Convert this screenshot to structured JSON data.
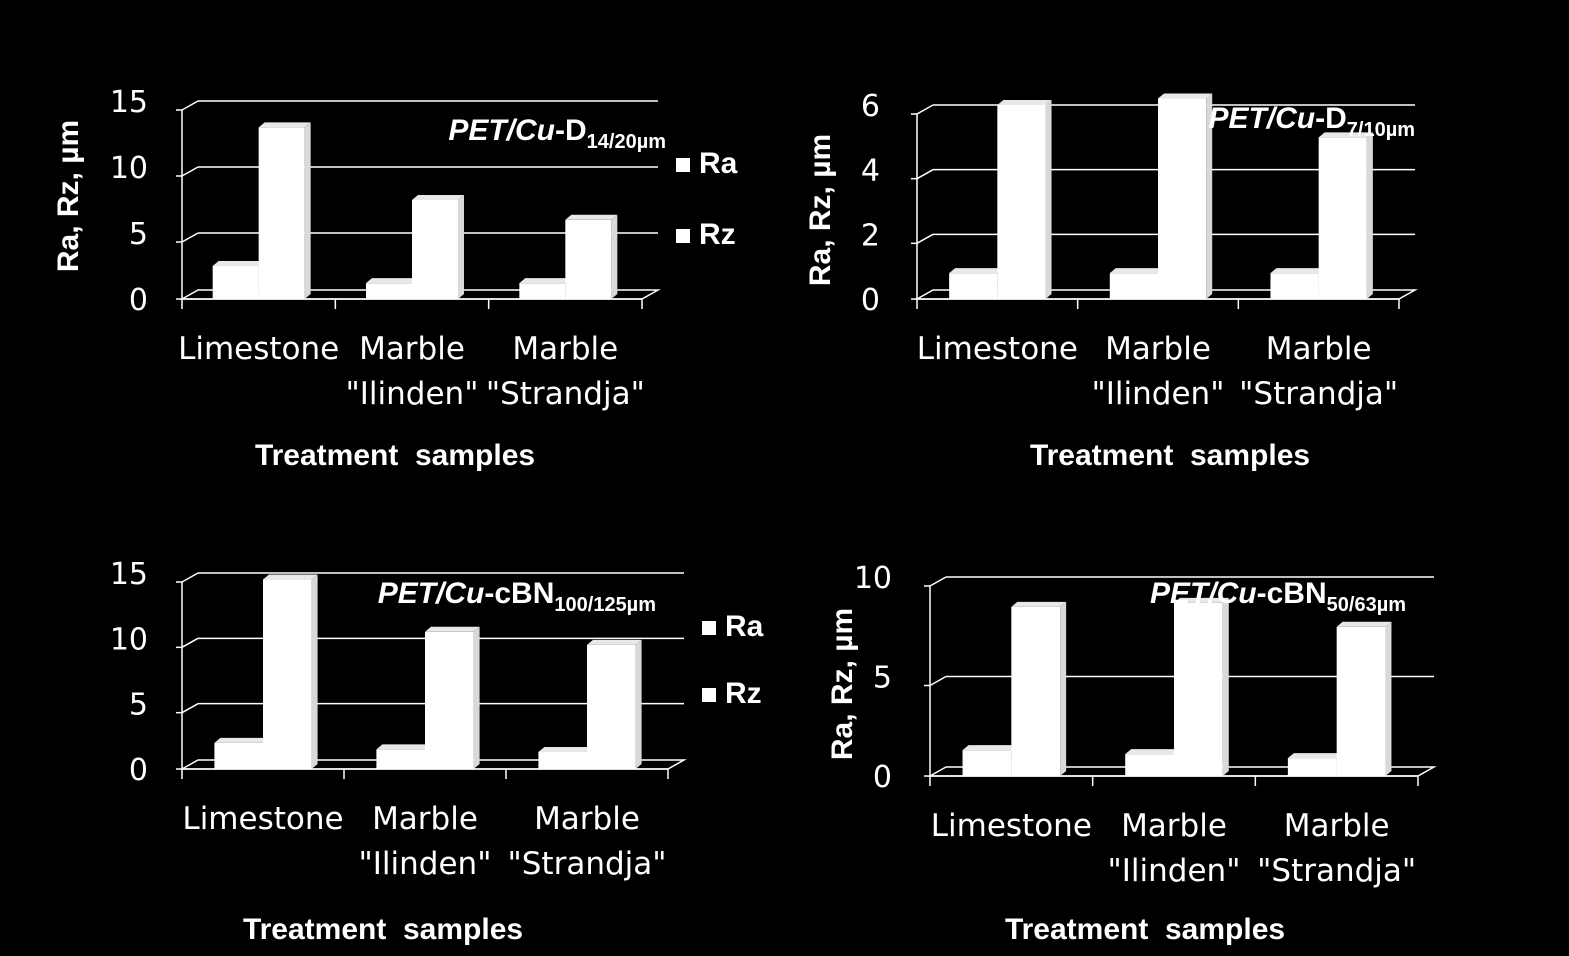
{
  "colors": {
    "background": "#000000",
    "bar_face": "#ffffff",
    "bar_shade": "#e8e8e8",
    "axes": "#ffffff"
  },
  "chart_data": [
    {
      "type": "bar",
      "title": {
        "italic": "PET/Cu",
        "main": "-D",
        "sub": "14/20µm"
      },
      "xlabel": "Treatment  samples",
      "ylabel": "Ra, Rz, µm",
      "ylim": [
        0,
        15
      ],
      "yticks": [
        0,
        5,
        10,
        15
      ],
      "categories": [
        [
          "Limestone",
          ""
        ],
        [
          "Marble",
          "\"Ilinden\""
        ],
        [
          "Marble",
          "\"Strandja\""
        ]
      ],
      "series": [
        {
          "name": "Ra",
          "values": [
            2.5,
            1.2,
            1.2
          ]
        },
        {
          "name": "Rz",
          "values": [
            13.0,
            7.5,
            6.0
          ]
        }
      ],
      "legend": "right"
    },
    {
      "type": "bar",
      "title": {
        "italic": "PET/Cu",
        "main": "-D",
        "sub": "7/10µm"
      },
      "xlabel": "Treatment  samples",
      "ylabel": "Ra, Rz, µm",
      "ylim": [
        0,
        6
      ],
      "yticks": [
        0,
        2,
        4,
        6
      ],
      "categories": [
        [
          "Limestone",
          ""
        ],
        [
          "Marble",
          "\"Ilinden\""
        ],
        [
          "Marble",
          "\"Strandja\""
        ]
      ],
      "series": [
        {
          "name": "Ra",
          "values": [
            0.8,
            0.8,
            0.8
          ]
        },
        {
          "name": "Rz",
          "values": [
            6.0,
            6.2,
            5.0
          ]
        }
      ],
      "legend": "none"
    },
    {
      "type": "bar",
      "title": {
        "italic": "PET/Cu",
        "main": "-cBN",
        "sub": "100/125µm"
      },
      "xlabel": "Treatment  samples",
      "ylabel": "",
      "ylim": [
        0,
        15
      ],
      "yticks": [
        0,
        5,
        10,
        15
      ],
      "categories": [
        [
          "Limestone",
          ""
        ],
        [
          "Marble",
          "\"Ilinden\""
        ],
        [
          "Marble",
          "\"Strandja\""
        ]
      ],
      "series": [
        {
          "name": "Ra",
          "values": [
            2.0,
            1.5,
            1.3
          ]
        },
        {
          "name": "Rz",
          "values": [
            14.5,
            10.5,
            9.5
          ]
        }
      ],
      "legend": "right"
    },
    {
      "type": "bar",
      "title": {
        "italic": "PET/Cu",
        "main": "-cBN",
        "sub": "50/63µm"
      },
      "xlabel": "Treatment  samples",
      "ylabel": "Ra, Rz, µm",
      "ylim": [
        0,
        10
      ],
      "yticks": [
        0,
        5,
        10
      ],
      "categories": [
        [
          "Limestone",
          ""
        ],
        [
          "Marble",
          "\"Ilinden\""
        ],
        [
          "Marble",
          "\"Strandja\""
        ]
      ],
      "series": [
        {
          "name": "Ra",
          "values": [
            1.3,
            1.1,
            0.9
          ]
        },
        {
          "name": "Rz",
          "values": [
            8.5,
            8.7,
            7.5
          ]
        }
      ],
      "legend": "none"
    }
  ]
}
